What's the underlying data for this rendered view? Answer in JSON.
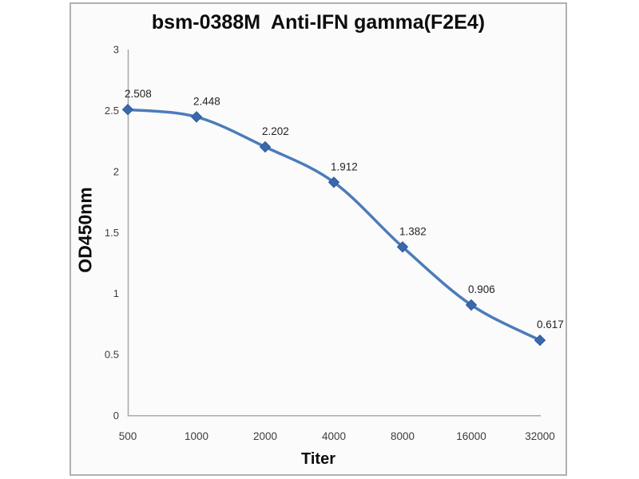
{
  "figure": {
    "title": "bsm-0388M  Anti-IFN gamma(F2E4)",
    "x_axis_label": "Titer",
    "y_axis_label": "OD450nm"
  },
  "chart_data": {
    "type": "line",
    "title": "bsm-0388M  Anti-IFN gamma(F2E4)",
    "xlabel": "Titer",
    "ylabel": "OD450nm",
    "categories": [
      "500",
      "1000",
      "2000",
      "4000",
      "8000",
      "16000",
      "32000"
    ],
    "series": [
      {
        "name": "OD450nm",
        "values": [
          2.508,
          2.448,
          2.202,
          1.912,
          1.382,
          0.906,
          0.617
        ]
      }
    ],
    "point_labels": [
      "2.508",
      "2.448",
      "2.202",
      "1.912",
      "1.382",
      "0.906",
      "0.617"
    ],
    "y_tick_labels": [
      "0",
      "0.5",
      "1",
      "1.5",
      "2",
      "2.5",
      "3"
    ],
    "y_tick_values": [
      0,
      0.5,
      1,
      1.5,
      2,
      2.5,
      3
    ],
    "ylim": [
      0,
      3
    ],
    "grid": false,
    "legend": false,
    "marker": "diamond",
    "colors": {
      "line": "#4b7cba",
      "marker_fill": "#3a68ad",
      "marker_stroke": "#2f5a99",
      "axis_line": "#a9a9a9",
      "tick_text": "#3d3d3d",
      "data_label_text": "#232323",
      "frame_border": "#b0b0b0",
      "frame_background": "#fbfbfb"
    }
  }
}
